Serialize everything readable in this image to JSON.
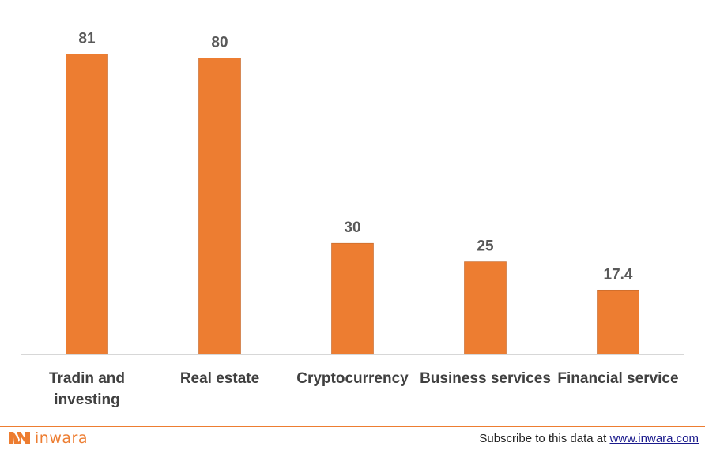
{
  "chart_data": {
    "type": "bar",
    "categories": [
      [
        "Tradin and",
        "investing"
      ],
      [
        "Real estate"
      ],
      [
        "Cryptocurrency"
      ],
      [
        "Business services"
      ],
      [
        "Financial service"
      ]
    ],
    "values": [
      81,
      80,
      30,
      25,
      17.4
    ],
    "value_labels": [
      "81",
      "80",
      "30",
      "25",
      "17.4"
    ],
    "ylim": [
      0,
      95
    ],
    "grid": false,
    "bar_color": "#ed7d31",
    "axis_color": "#bfbfbf"
  },
  "brand": {
    "logo_text": "inwara",
    "logo_icon": "inwara-logo-icon"
  },
  "footer": {
    "subscribe_text": "Subscribe to this data at ",
    "link_text": "www.inwara.com"
  }
}
